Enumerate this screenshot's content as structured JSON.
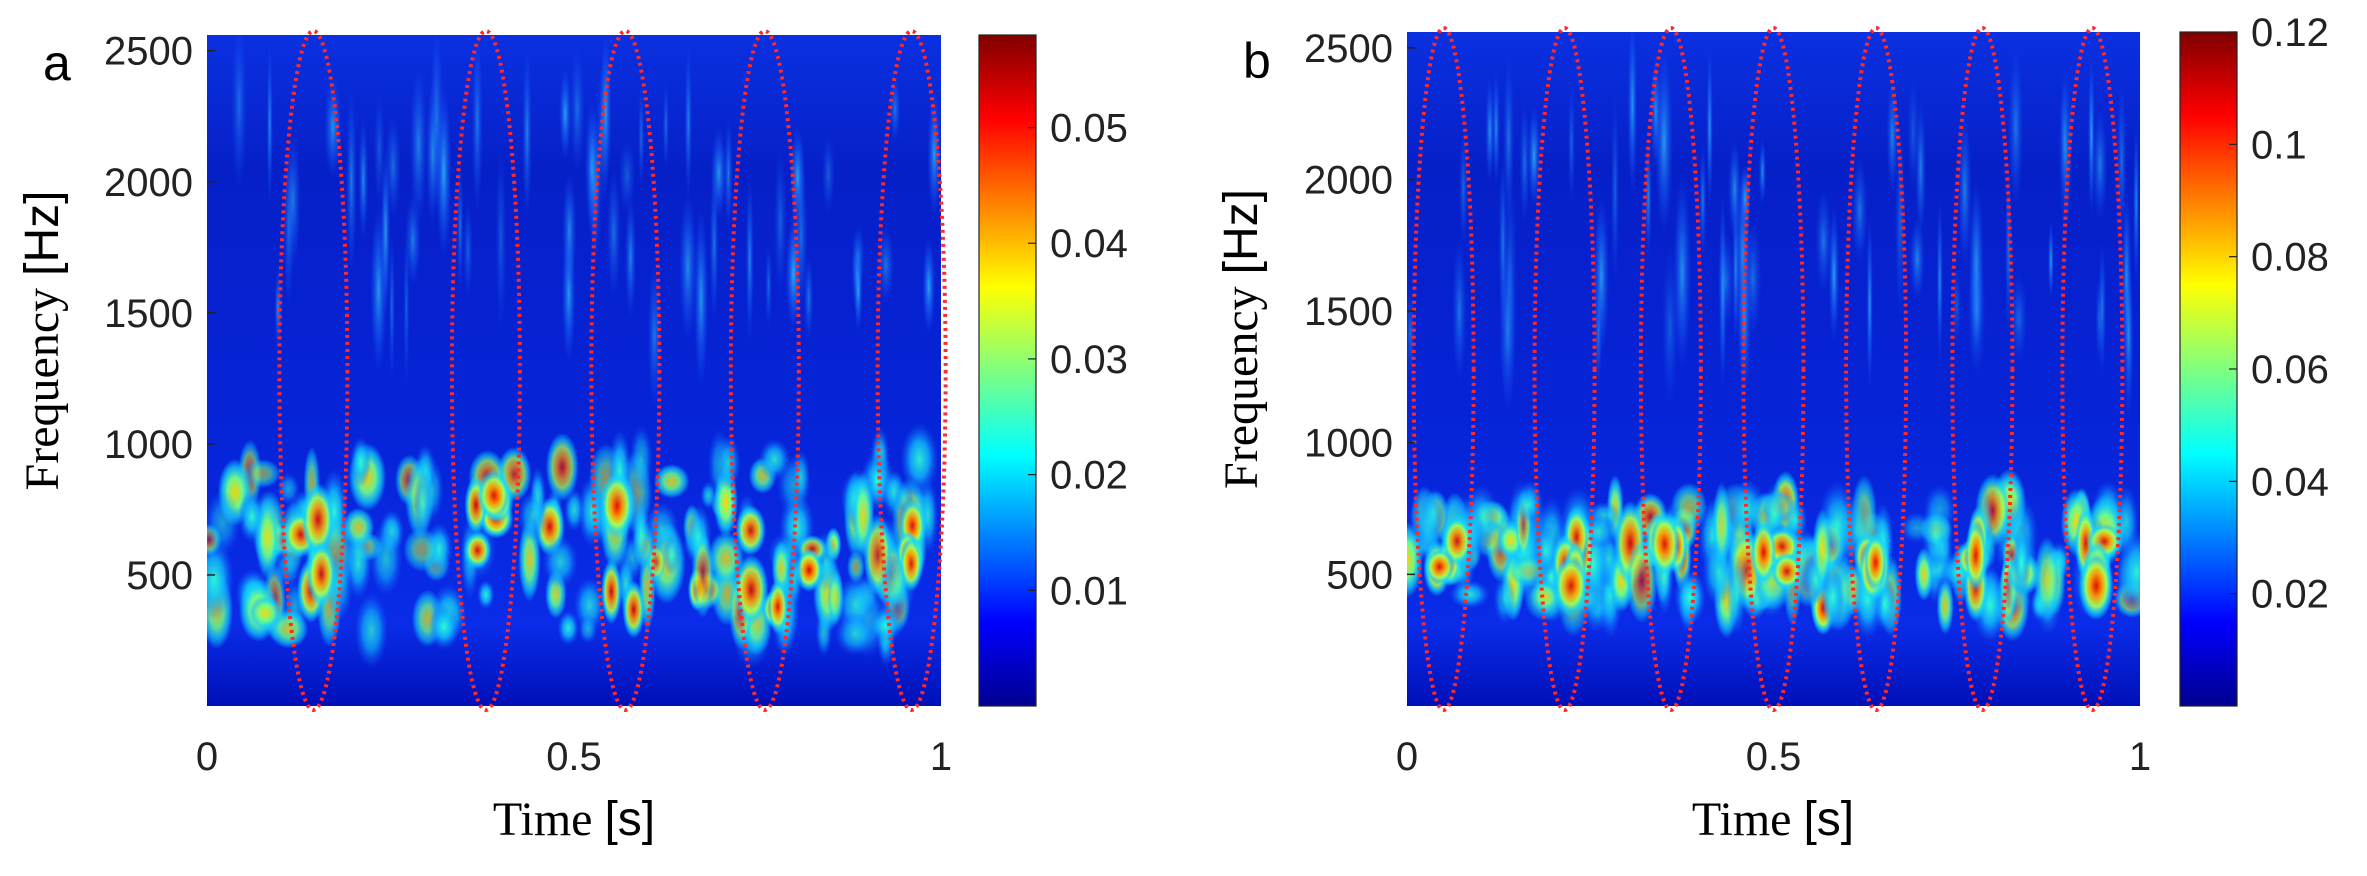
{
  "chart_data": [
    {
      "type": "heatmap",
      "panel_label": "a",
      "xlabel_word": "Time",
      "xlabel_unit": "[s]",
      "ylabel_word": "Frequency",
      "ylabel_unit": "[Hz]",
      "xlim": [
        0,
        1
      ],
      "ylim": [
        0,
        2560
      ],
      "x_ticks": [
        "0",
        "0.5",
        "1"
      ],
      "y_ticks": [
        "500",
        "1000",
        "1500",
        "2000",
        "2500"
      ],
      "colorbar": {
        "range": [
          0,
          0.058
        ],
        "ticks": [
          "0.01",
          "0.02",
          "0.03",
          "0.04",
          "0.05"
        ],
        "colormap": "jet"
      },
      "dominant_band_hz": [
        350,
        850
      ],
      "annotations": {
        "type": "dotted-ellipse",
        "color": "#ff2a2a",
        "center_times_s": [
          0.145,
          0.38,
          0.57,
          0.76,
          0.96
        ]
      }
    },
    {
      "type": "heatmap",
      "panel_label": "b",
      "xlabel_word": "Time",
      "xlabel_unit": "[s]",
      "ylabel_word": "Frequency",
      "ylabel_unit": "[Hz]",
      "xlim": [
        0,
        1
      ],
      "ylim": [
        0,
        2560
      ],
      "x_ticks": [
        "0",
        "0.5",
        "1"
      ],
      "y_ticks": [
        "500",
        "1000",
        "1500",
        "2000",
        "2500"
      ],
      "colorbar": {
        "range": [
          0,
          0.12
        ],
        "ticks": [
          "0.02",
          "0.04",
          "0.06",
          "0.08",
          "0.1",
          "0.12"
        ],
        "colormap": "jet"
      },
      "dominant_band_hz": [
        450,
        650
      ],
      "annotations": {
        "type": "dotted-ellipse",
        "color": "#ff2a2a",
        "center_times_s": [
          0.05,
          0.215,
          0.36,
          0.5,
          0.64,
          0.785,
          0.935
        ]
      }
    }
  ]
}
